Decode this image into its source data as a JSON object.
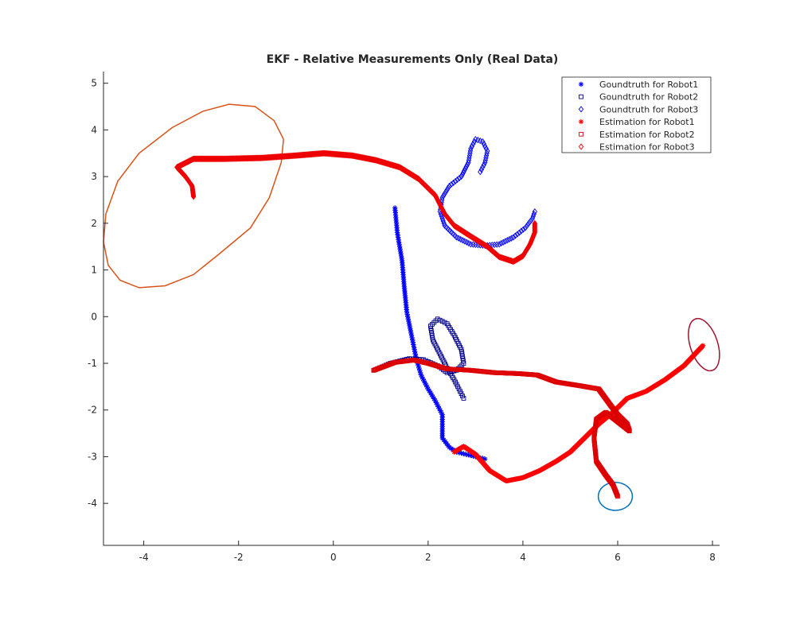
{
  "chart_data": {
    "type": "scatter",
    "title": "EKF - Relative Measurements Only (Real Data)",
    "xlabel": "",
    "ylabel": "",
    "xlim": [
      -4.85,
      8.15
    ],
    "ylim": [
      -4.9,
      5.25
    ],
    "x_ticks": [
      -4,
      -2,
      0,
      2,
      4,
      6,
      8
    ],
    "y_ticks": [
      5,
      4,
      3,
      2,
      1,
      0,
      -1,
      -2,
      -3,
      -4
    ],
    "grid": false,
    "legend_position": "top-right",
    "legend": [
      "Goundtruth for Robot1",
      "Goundtruth for Robot2",
      "Goundtruth for Robot3",
      "Estimation for Robot1",
      "Estimation for Robot2",
      "Estimation for Robot3"
    ],
    "series": [
      {
        "name": "Goundtruth for Robot1",
        "marker": "star",
        "color": "#0000ff",
        "density": 3,
        "points": [
          [
            1.3,
            2.33
          ],
          [
            1.35,
            1.8
          ],
          [
            1.45,
            1.2
          ],
          [
            1.5,
            0.6
          ],
          [
            1.55,
            0.1
          ],
          [
            1.65,
            -0.4
          ],
          [
            1.75,
            -0.9
          ],
          [
            1.85,
            -1.25
          ],
          [
            2.0,
            -1.55
          ],
          [
            2.15,
            -1.8
          ],
          [
            2.3,
            -2.1
          ],
          [
            2.3,
            -2.4
          ],
          [
            2.3,
            -2.6
          ],
          [
            2.45,
            -2.8
          ],
          [
            2.6,
            -2.9
          ],
          [
            2.8,
            -2.95
          ],
          [
            3.2,
            -3.05
          ]
        ]
      },
      {
        "name": "Goundtruth for Robot2",
        "marker": "square",
        "color": "#00008b",
        "density": 3,
        "points": [
          [
            0.85,
            -1.15
          ],
          [
            1.2,
            -1.0
          ],
          [
            1.6,
            -0.9
          ],
          [
            1.9,
            -0.92
          ],
          [
            2.2,
            -1.05
          ],
          [
            2.4,
            -1.2
          ],
          [
            2.6,
            -1.15
          ],
          [
            2.75,
            -1.0
          ],
          [
            2.7,
            -0.7
          ],
          [
            2.55,
            -0.4
          ],
          [
            2.4,
            -0.15
          ],
          [
            2.2,
            -0.05
          ],
          [
            2.05,
            -0.2
          ],
          [
            2.1,
            -0.5
          ],
          [
            2.25,
            -0.8
          ],
          [
            2.4,
            -1.1
          ],
          [
            2.55,
            -1.35
          ],
          [
            2.65,
            -1.55
          ],
          [
            2.75,
            -1.75
          ]
        ]
      },
      {
        "name": "Goundtruth for Robot3",
        "marker": "diamond",
        "color": "#0000ff",
        "density": 3,
        "points": [
          [
            3.1,
            3.1
          ],
          [
            3.2,
            3.3
          ],
          [
            3.25,
            3.55
          ],
          [
            3.15,
            3.75
          ],
          [
            3.0,
            3.8
          ],
          [
            2.9,
            3.6
          ],
          [
            2.85,
            3.3
          ],
          [
            2.7,
            3.0
          ],
          [
            2.45,
            2.8
          ],
          [
            2.3,
            2.55
          ],
          [
            2.25,
            2.25
          ],
          [
            2.35,
            1.95
          ],
          [
            2.6,
            1.7
          ],
          [
            2.9,
            1.55
          ],
          [
            3.2,
            1.52
          ],
          [
            3.5,
            1.55
          ],
          [
            3.8,
            1.7
          ],
          [
            4.05,
            1.9
          ],
          [
            4.2,
            2.1
          ],
          [
            4.25,
            2.25
          ]
        ]
      },
      {
        "name": "Estimation for Robot1",
        "marker": "star",
        "color": "#ff0000",
        "density": 1,
        "points": [
          [
            2.55,
            -2.9
          ],
          [
            2.75,
            -2.78
          ],
          [
            3.0,
            -2.95
          ],
          [
            3.3,
            -3.3
          ],
          [
            3.65,
            -3.52
          ],
          [
            4.0,
            -3.45
          ],
          [
            4.35,
            -3.3
          ],
          [
            4.7,
            -3.1
          ],
          [
            5.0,
            -2.9
          ],
          [
            5.3,
            -2.6
          ],
          [
            5.6,
            -2.3
          ],
          [
            5.9,
            -2.05
          ],
          [
            6.2,
            -1.75
          ],
          [
            6.6,
            -1.6
          ],
          [
            7.0,
            -1.35
          ],
          [
            7.4,
            -1.05
          ],
          [
            7.8,
            -0.62
          ]
        ]
      },
      {
        "name": "Estimation for Robot2",
        "marker": "square",
        "color": "#dd0000",
        "density": 1,
        "points": [
          [
            0.85,
            -1.15
          ],
          [
            1.3,
            -0.98
          ],
          [
            1.7,
            -0.93
          ],
          [
            2.0,
            -1.0
          ],
          [
            2.4,
            -1.12
          ],
          [
            2.9,
            -1.15
          ],
          [
            3.4,
            -1.2
          ],
          [
            3.9,
            -1.22
          ],
          [
            4.3,
            -1.25
          ],
          [
            4.7,
            -1.4
          ],
          [
            5.2,
            -1.48
          ],
          [
            5.6,
            -1.55
          ],
          [
            5.85,
            -1.9
          ],
          [
            6.0,
            -2.1
          ],
          [
            6.2,
            -2.3
          ],
          [
            6.25,
            -2.45
          ],
          [
            6.0,
            -2.25
          ],
          [
            5.75,
            -2.05
          ],
          [
            5.55,
            -2.2
          ],
          [
            5.5,
            -2.6
          ],
          [
            5.55,
            -3.1
          ],
          [
            5.75,
            -3.4
          ],
          [
            5.9,
            -3.6
          ],
          [
            6.0,
            -3.85
          ]
        ]
      },
      {
        "name": "Estimation for Robot3",
        "marker": "diamond",
        "color": "#ee0000",
        "density": 1,
        "points": [
          [
            -2.95,
            2.57
          ],
          [
            -2.98,
            2.8
          ],
          [
            -3.12,
            3.0
          ],
          [
            -3.3,
            3.2
          ],
          [
            -2.95,
            3.38
          ],
          [
            -2.3,
            3.38
          ],
          [
            -1.5,
            3.4
          ],
          [
            -0.8,
            3.45
          ],
          [
            -0.2,
            3.5
          ],
          [
            0.4,
            3.45
          ],
          [
            0.9,
            3.35
          ],
          [
            1.4,
            3.2
          ],
          [
            1.8,
            2.95
          ],
          [
            2.15,
            2.6
          ],
          [
            2.35,
            2.2
          ],
          [
            2.55,
            1.95
          ],
          [
            2.9,
            1.72
          ],
          [
            3.25,
            1.5
          ],
          [
            3.5,
            1.28
          ],
          [
            3.8,
            1.18
          ],
          [
            4.0,
            1.3
          ],
          [
            4.15,
            1.55
          ],
          [
            4.25,
            1.8
          ],
          [
            4.25,
            2.0
          ]
        ]
      }
    ],
    "ellipses": [
      {
        "color": "#d95319",
        "points": [
          [
            -1.05,
            3.8
          ],
          [
            -1.25,
            4.2
          ],
          [
            -1.65,
            4.5
          ],
          [
            -2.2,
            4.55
          ],
          [
            -2.75,
            4.4
          ],
          [
            -3.4,
            4.05
          ],
          [
            -4.1,
            3.5
          ],
          [
            -4.55,
            2.9
          ],
          [
            -4.8,
            2.2
          ],
          [
            -4.85,
            1.6
          ],
          [
            -4.75,
            1.1
          ],
          [
            -4.5,
            0.78
          ],
          [
            -4.1,
            0.62
          ],
          [
            -3.55,
            0.66
          ],
          [
            -2.95,
            0.9
          ],
          [
            -2.4,
            1.35
          ],
          [
            -1.75,
            1.9
          ],
          [
            -1.35,
            2.55
          ],
          [
            -1.1,
            3.3
          ],
          [
            -1.05,
            3.8
          ]
        ]
      },
      {
        "color": "#0072bd",
        "cx": 5.95,
        "cy": -3.85,
        "rx": 0.36,
        "ry": 0.3,
        "angle": 0
      },
      {
        "color": "#a2142f",
        "cx": 7.82,
        "cy": -0.6,
        "rx": 0.29,
        "ry": 0.58,
        "angle": -18
      }
    ]
  }
}
